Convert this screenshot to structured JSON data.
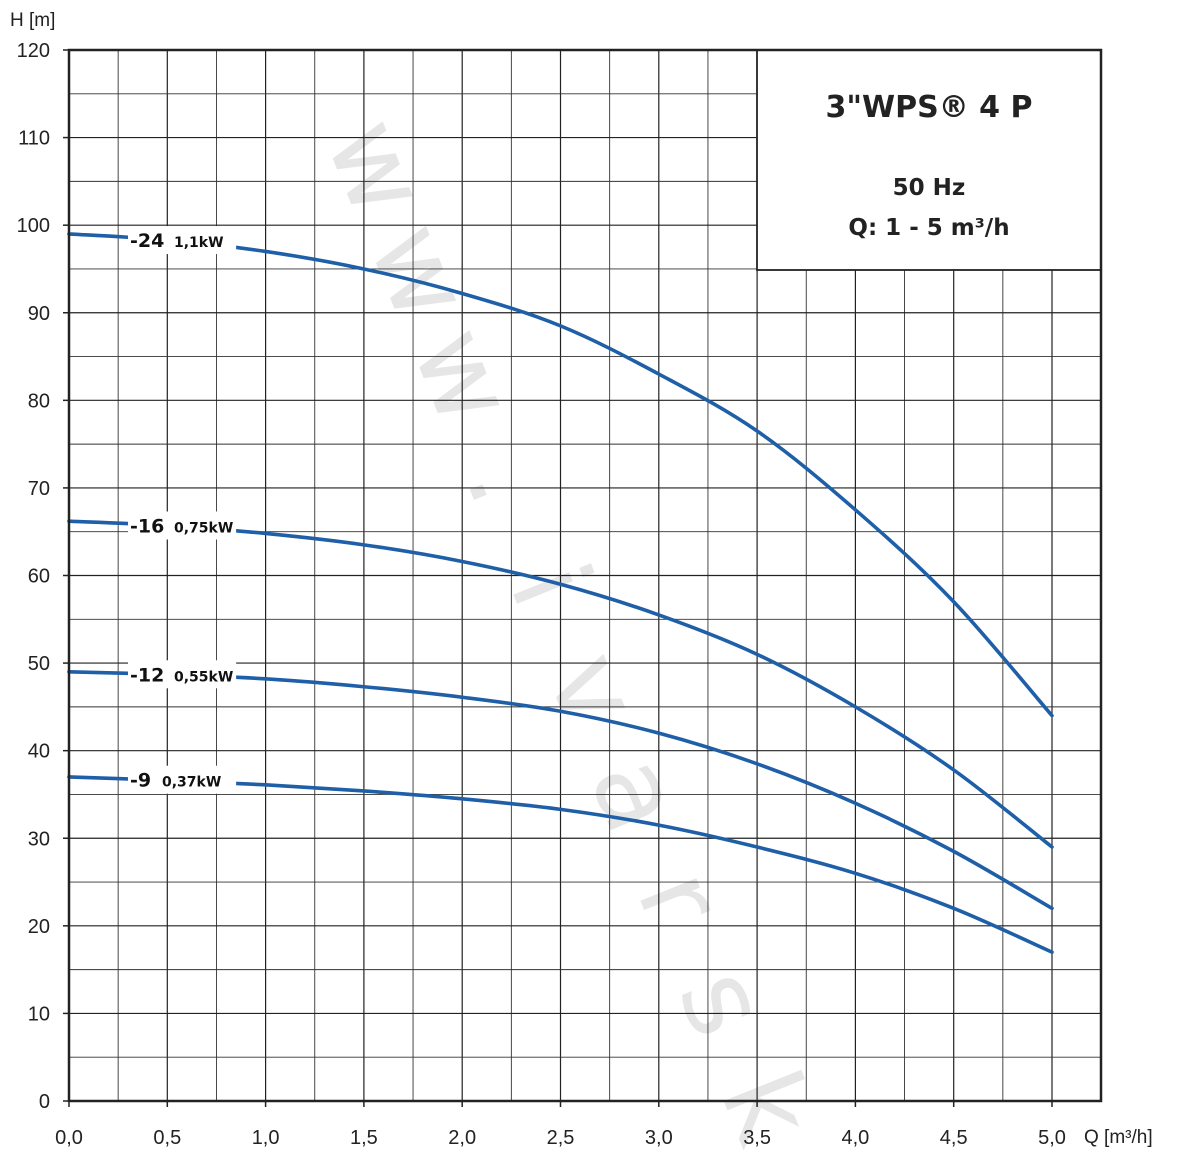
{
  "chart_data": {
    "type": "line",
    "ylabel": "H [m]",
    "xlabel": "Q [m³/h]",
    "xlim": [
      0,
      5
    ],
    "ylim": [
      0,
      120
    ],
    "x_ticks": [
      "0,0",
      "0,5",
      "1,0",
      "1,5",
      "2,0",
      "2,5",
      "3,0",
      "3,5",
      "4,0",
      "4,5",
      "5,0"
    ],
    "y_ticks": [
      "0",
      "10",
      "20",
      "30",
      "40",
      "50",
      "60",
      "70",
      "80",
      "90",
      "100",
      "110",
      "120"
    ],
    "grid": true,
    "info_box": {
      "title": "3\"WPS® 4 P",
      "line1": "50 Hz",
      "line2": "Q: 1 - 5 m³/h"
    },
    "watermark": "www.ivarsk",
    "series": [
      {
        "name": "-24",
        "power": "1,1kW",
        "x": [
          0,
          0.5,
          1.0,
          1.5,
          2.0,
          2.5,
          3.0,
          3.5,
          4.0,
          4.5,
          5.0
        ],
        "y": [
          99,
          98.3,
          97,
          95,
          92.2,
          88.5,
          83,
          76.5,
          67.5,
          57,
          44
        ]
      },
      {
        "name": "-16",
        "power": "0,75kW",
        "x": [
          0,
          0.5,
          1.0,
          1.5,
          2.0,
          2.5,
          3.0,
          3.5,
          4.0,
          4.5,
          5.0
        ],
        "y": [
          66.2,
          65.7,
          64.8,
          63.5,
          61.6,
          59,
          55.5,
          51,
          45,
          37.8,
          29
        ]
      },
      {
        "name": "-12",
        "power": "0,55kW",
        "x": [
          0,
          0.5,
          1.0,
          1.5,
          2.0,
          2.5,
          3.0,
          3.5,
          4.0,
          4.5,
          5.0
        ],
        "y": [
          49,
          48.7,
          48.2,
          47.3,
          46.1,
          44.5,
          42,
          38.5,
          34,
          28.5,
          22
        ]
      },
      {
        "name": "-9",
        "power": "0,37kW",
        "x": [
          0,
          0.5,
          1.0,
          1.5,
          2.0,
          2.5,
          3.0,
          3.5,
          4.0,
          4.5,
          5.0
        ],
        "y": [
          37,
          36.6,
          36.1,
          35.4,
          34.5,
          33.3,
          31.5,
          29,
          26,
          22,
          17
        ]
      }
    ],
    "colors": {
      "series": "#1f5fa8",
      "grid": "#222222"
    }
  }
}
